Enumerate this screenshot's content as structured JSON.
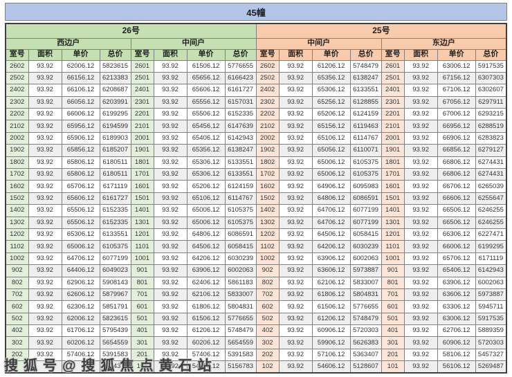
{
  "title": "45幢",
  "watermark": "搜狐号@搜狐焦点黄石站",
  "colors": {
    "title_bg": "#b4c6e7",
    "building26_bg": "#c6e0b4",
    "building25_bg": "#f8cbad",
    "room_cell_green": "#e2efda",
    "room_cell_orange": "#fce4d6",
    "stripe_row": "#efefef",
    "grid_line": "#7f7f7f"
  },
  "table": {
    "col_headers": [
      "室号",
      "面积",
      "单价",
      "总价"
    ],
    "buildings": [
      {
        "label": "26号",
        "units": [
          "西边户",
          "中间户"
        ]
      },
      {
        "label": "25号",
        "units": [
          "中间户",
          "东边户"
        ]
      }
    ],
    "groups": [
      {
        "building": "26号",
        "unit": "西边户",
        "rows": [
          [
            "2602",
            "93.92",
            "62006.12",
            "5823615"
          ],
          [
            "2502",
            "93.92",
            "66156.12",
            "6213383"
          ],
          [
            "2402",
            "93.92",
            "66106.12",
            "6208687"
          ],
          [
            "2302",
            "93.92",
            "66056.12",
            "6203991"
          ],
          [
            "2202",
            "93.92",
            "66006.12",
            "6199295"
          ],
          [
            "2102",
            "93.92",
            "65956.12",
            "6194599"
          ],
          [
            "2002",
            "93.92",
            "65906.12",
            "6189903"
          ],
          [
            "1902",
            "93.92",
            "65856.12",
            "6185207"
          ],
          [
            "1802",
            "93.92",
            "65806.12",
            "6180511"
          ],
          [
            "1702",
            "93.92",
            "65806.12",
            "6180511"
          ],
          [
            "1602",
            "93.92",
            "65706.12",
            "6171119"
          ],
          [
            "1502",
            "93.92",
            "65606.12",
            "6161727"
          ],
          [
            "1402",
            "93.92",
            "65506.12",
            "6152335"
          ],
          [
            "1302",
            "93.92",
            "65506.12",
            "6152335"
          ],
          [
            "1202",
            "93.92",
            "65306.12",
            "6133551"
          ],
          [
            "1102",
            "93.92",
            "65006.12",
            "6105375"
          ],
          [
            "1002",
            "93.92",
            "64706.12",
            "6077199"
          ],
          [
            "902",
            "93.92",
            "64406.12",
            "6049023"
          ],
          [
            "802",
            "93.92",
            "62906.12",
            "5908143"
          ],
          [
            "702",
            "93.92",
            "62606.12",
            "5879967"
          ],
          [
            "602",
            "93.92",
            "62306.12",
            "5851791"
          ],
          [
            "502",
            "93.92",
            "62006.12",
            "5823615"
          ],
          [
            "402",
            "93.92",
            "61706.12",
            "5795439"
          ],
          [
            "302",
            "93.92",
            "60206.12",
            "5654559"
          ],
          [
            "202",
            "93.92",
            "57406.12",
            "5391583"
          ],
          [
            "",
            "",
            "",
            "743"
          ]
        ]
      },
      {
        "building": "26号",
        "unit": "中间户",
        "rows": [
          [
            "2601",
            "93.92",
            "61506.12",
            "5776655"
          ],
          [
            "2501",
            "93.92",
            "65656.12",
            "6166423"
          ],
          [
            "2401",
            "93.92",
            "65606.12",
            "6161727"
          ],
          [
            "2301",
            "93.92",
            "65556.12",
            "6157031"
          ],
          [
            "2201",
            "93.92",
            "65506.12",
            "6152335"
          ],
          [
            "2101",
            "93.92",
            "65456.12",
            "6147639"
          ],
          [
            "2001",
            "93.92",
            "65406.12",
            "6142943"
          ],
          [
            "1901",
            "93.92",
            "65356.12",
            "6138247"
          ],
          [
            "1801",
            "93.92",
            "65306.12",
            "6133551"
          ],
          [
            "1701",
            "93.92",
            "65306.12",
            "6133551"
          ],
          [
            "1601",
            "93.92",
            "65206.12",
            "6124159"
          ],
          [
            "1501",
            "93.92",
            "65106.12",
            "6114767"
          ],
          [
            "1401",
            "93.92",
            "65006.12",
            "6105375"
          ],
          [
            "1301",
            "93.92",
            "65006.12",
            "6105375"
          ],
          [
            "1201",
            "93.92",
            "64806.12",
            "6086591"
          ],
          [
            "1101",
            "93.92",
            "64506.12",
            "6058415"
          ],
          [
            "1001",
            "93.92",
            "64206.12",
            "6030239"
          ],
          [
            "901",
            "93.92",
            "63906.12",
            "6002063"
          ],
          [
            "801",
            "93.92",
            "62406.12",
            "5861183"
          ],
          [
            "701",
            "93.92",
            "62106.12",
            "5833007"
          ],
          [
            "601",
            "93.92",
            "61806.12",
            "5804831"
          ],
          [
            "501",
            "93.92",
            "61506.12",
            "5776655"
          ],
          [
            "401",
            "93.92",
            "61206.12",
            "5748479"
          ],
          [
            "301",
            "93.92",
            "60206.12",
            "5654559"
          ],
          [
            "201",
            "93.92",
            "57406.12",
            "5391583"
          ],
          [
            "101",
            "93.92",
            "54906.12",
            "5156783"
          ]
        ]
      },
      {
        "building": "25号",
        "unit": "中间户",
        "rows": [
          [
            "2602",
            "93.92",
            "61206.12",
            "5748479"
          ],
          [
            "2502",
            "93.92",
            "65356.12",
            "6138247"
          ],
          [
            "2402",
            "93.92",
            "65306.12",
            "6133551"
          ],
          [
            "2302",
            "93.92",
            "65256.12",
            "6128855"
          ],
          [
            "2202",
            "93.92",
            "65206.12",
            "6124159"
          ],
          [
            "2102",
            "93.92",
            "65156.12",
            "6119463"
          ],
          [
            "2002",
            "93.92",
            "65106.12",
            "6114767"
          ],
          [
            "1902",
            "93.92",
            "65056.12",
            "6110071"
          ],
          [
            "1802",
            "93.92",
            "65006.12",
            "6105375"
          ],
          [
            "1702",
            "93.92",
            "65006.12",
            "6105375"
          ],
          [
            "1602",
            "93.92",
            "64906.12",
            "6095983"
          ],
          [
            "1502",
            "93.92",
            "64806.12",
            "6086591"
          ],
          [
            "1402",
            "93.92",
            "64706.12",
            "6077199"
          ],
          [
            "1302",
            "93.92",
            "64706.12",
            "6077199"
          ],
          [
            "1202",
            "93.92",
            "64506.12",
            "6058415"
          ],
          [
            "1102",
            "93.92",
            "64206.12",
            "6030239"
          ],
          [
            "1002",
            "93.92",
            "63906.12",
            "6002063"
          ],
          [
            "902",
            "93.92",
            "63606.12",
            "5973887"
          ],
          [
            "802",
            "93.92",
            "62106.12",
            "5833007"
          ],
          [
            "702",
            "93.92",
            "61806.12",
            "5804831"
          ],
          [
            "602",
            "93.92",
            "61506.12",
            "5776655"
          ],
          [
            "502",
            "93.92",
            "61206.12",
            "5748479"
          ],
          [
            "402",
            "93.92",
            "60906.12",
            "5720303"
          ],
          [
            "302",
            "93.92",
            "59906.12",
            "5626383"
          ],
          [
            "202",
            "93.92",
            "57106.12",
            "5363407"
          ],
          [
            "102",
            "93.92",
            "54606.12",
            "5128607"
          ]
        ]
      },
      {
        "building": "25号",
        "unit": "东边户",
        "rows": [
          [
            "2601",
            "93.92",
            "63006.12",
            "5917535"
          ],
          [
            "2501",
            "93.92",
            "67156.12",
            "6307303"
          ],
          [
            "2401",
            "93.92",
            "67106.12",
            "6302607"
          ],
          [
            "2301",
            "93.92",
            "67056.12",
            "6297911"
          ],
          [
            "2201",
            "93.92",
            "67006.12",
            "6293215"
          ],
          [
            "2101",
            "93.92",
            "66956.12",
            "6288519"
          ],
          [
            "2001",
            "93.92",
            "66906.12",
            "6283823"
          ],
          [
            "1901",
            "93.92",
            "66856.12",
            "6279127"
          ],
          [
            "1801",
            "93.92",
            "66806.12",
            "6274431"
          ],
          [
            "1701",
            "93.92",
            "66806.12",
            "6274431"
          ],
          [
            "1601",
            "93.92",
            "66706.12",
            "6265039"
          ],
          [
            "1501",
            "93.92",
            "66606.12",
            "6255647"
          ],
          [
            "1401",
            "93.92",
            "66506.12",
            "6246255"
          ],
          [
            "1301",
            "93.92",
            "66506.12",
            "6246255"
          ],
          [
            "1201",
            "93.92",
            "66306.12",
            "6227471"
          ],
          [
            "1101",
            "93.92",
            "66006.12",
            "6199295"
          ],
          [
            "1001",
            "93.92",
            "65706.12",
            "6171119"
          ],
          [
            "901",
            "93.92",
            "65406.12",
            "6142943"
          ],
          [
            "801",
            "93.92",
            "63906.12",
            "6002063"
          ],
          [
            "701",
            "93.92",
            "63606.12",
            "5973887"
          ],
          [
            "601",
            "93.92",
            "63306.12",
            "5945711"
          ],
          [
            "501",
            "93.92",
            "63006.12",
            "5917535"
          ],
          [
            "401",
            "93.92",
            "62706.12",
            "5889359"
          ],
          [
            "301",
            "93.92",
            "60906.12",
            "5720303"
          ],
          [
            "201",
            "93.92",
            "58106.12",
            "5457327"
          ],
          [
            "101",
            "93.92",
            "56106.12",
            "5269487"
          ]
        ]
      }
    ]
  }
}
